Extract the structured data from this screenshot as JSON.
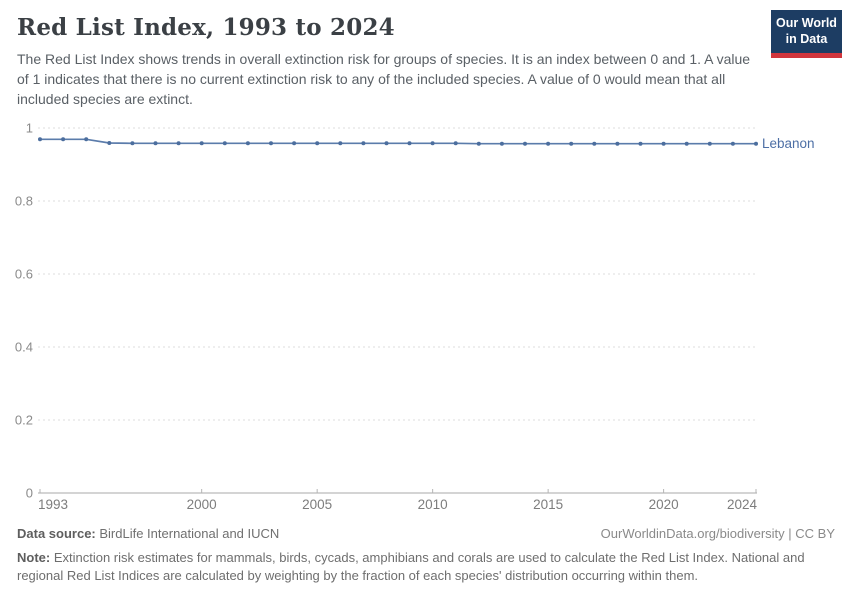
{
  "header": {
    "title": "Red List Index, 1993 to 2024",
    "subtitle": "The Red List Index shows trends in overall extinction risk for groups of species. It is an index between 0 and 1. A value of 1 indicates that there is no current extinction risk to any of the included species. A value of 0 would mean that all included species are extinct.",
    "logo": {
      "line1": "Our World",
      "line2": "in Data",
      "bg_color": "#1d3d63",
      "bar_color": "#d1353c"
    }
  },
  "chart_data": {
    "type": "line",
    "title": "Red List Index, 1993 to 2024",
    "x": [
      1993,
      1994,
      1995,
      1996,
      1997,
      1998,
      1999,
      2000,
      2001,
      2002,
      2003,
      2004,
      2005,
      2006,
      2007,
      2008,
      2009,
      2010,
      2011,
      2012,
      2013,
      2014,
      2015,
      2016,
      2017,
      2018,
      2019,
      2020,
      2021,
      2022,
      2023,
      2024
    ],
    "series": [
      {
        "name": "Lebanon",
        "color": "#5b7cab",
        "dot_color": "#4c6e9e",
        "label_color": "#4d6fa5",
        "values": [
          0.969,
          0.969,
          0.969,
          0.959,
          0.958,
          0.958,
          0.958,
          0.958,
          0.958,
          0.958,
          0.958,
          0.958,
          0.958,
          0.958,
          0.958,
          0.958,
          0.958,
          0.958,
          0.958,
          0.957,
          0.957,
          0.957,
          0.957,
          0.957,
          0.957,
          0.957,
          0.957,
          0.957,
          0.957,
          0.957,
          0.957,
          0.957
        ]
      }
    ],
    "xlabel": "",
    "ylabel": "",
    "x_ticks": [
      1993,
      2000,
      2005,
      2010,
      2015,
      2020,
      2024
    ],
    "y_ticks": [
      1,
      0.8,
      0.6,
      0.4,
      0.2,
      0
    ],
    "xlim": [
      1993,
      2024
    ],
    "ylim": [
      0,
      1
    ],
    "grid": "horizontal-dashed",
    "legend": "inline-label-right-of-line",
    "grid_color": "#dedede",
    "axis_color": "#a8a8a8",
    "tick_label_color": "#8b8b8b"
  },
  "footer": {
    "source_label": "Data source:",
    "source_value": " BirdLife International and IUCN",
    "link": "OurWorldinData.org/biodiversity | CC BY",
    "note_label": "Note:",
    "note_value": " Extinction risk estimates for mammals, birds, cycads, amphibians and corals are used to calculate the Red List Index. National and regional Red List Indices are calculated by weighting by the fraction of each species' distribution occurring within them."
  }
}
